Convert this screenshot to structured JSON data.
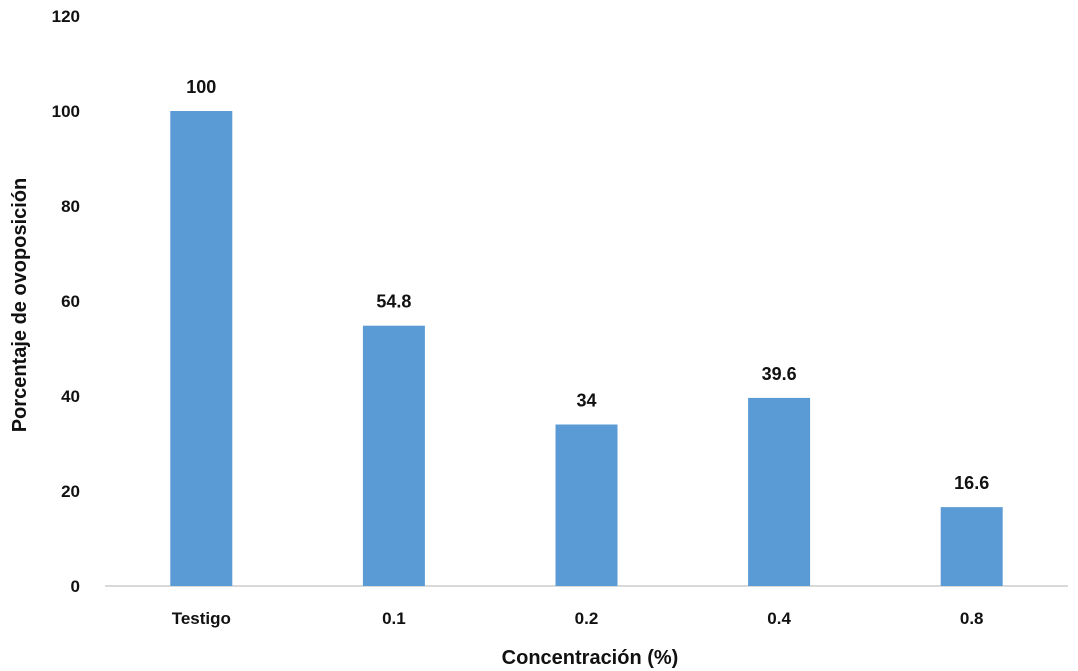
{
  "chart_data": {
    "type": "bar",
    "categories": [
      "Testigo",
      "0.1",
      "0.2",
      "0.4",
      "0.8"
    ],
    "values": [
      100,
      54.8,
      34,
      39.6,
      16.6
    ],
    "value_labels": [
      "100",
      "54.8",
      "34",
      "39.6",
      "16.6"
    ],
    "title": "",
    "xlabel": "Concentración (%)",
    "ylabel": "Porcentaje de ovoposición",
    "ylim": [
      0,
      120
    ],
    "yticks": [
      0,
      20,
      40,
      60,
      80,
      100,
      120
    ],
    "grid": false,
    "legend": "none",
    "bar_color": "#5b9bd5",
    "axis_color": "#d9d9d9"
  }
}
